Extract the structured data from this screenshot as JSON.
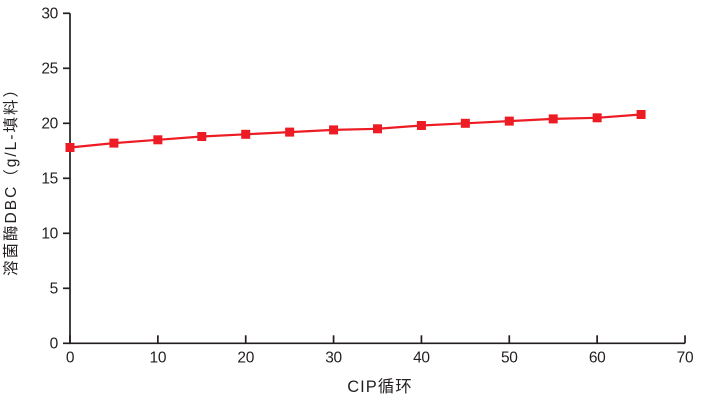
{
  "figure": {
    "background": "#ffffff",
    "axis_color": "#231f20",
    "accent_color": "#ed1c24"
  },
  "chart_data": {
    "type": "line",
    "title": "",
    "xlabel": "CIP循环",
    "ylabel": "溶菌酶DBC（g/L-填料）",
    "xlim": [
      0,
      70
    ],
    "ylim": [
      0,
      30
    ],
    "xticks": [
      0,
      10,
      20,
      30,
      40,
      50,
      60,
      70
    ],
    "yticks": [
      0,
      5,
      10,
      15,
      20,
      25,
      30
    ],
    "grid": false,
    "legend_position": "none",
    "series": [
      {
        "name": "溶菌酶DBC",
        "color": "#ed1c24",
        "marker": "square",
        "x": [
          0,
          5,
          10,
          15,
          20,
          25,
          30,
          35,
          40,
          45,
          50,
          55,
          60,
          65
        ],
        "y": [
          17.8,
          18.2,
          18.5,
          18.8,
          19.0,
          19.2,
          19.4,
          19.5,
          19.8,
          20.0,
          20.2,
          20.4,
          20.5,
          20.8
        ]
      }
    ]
  }
}
